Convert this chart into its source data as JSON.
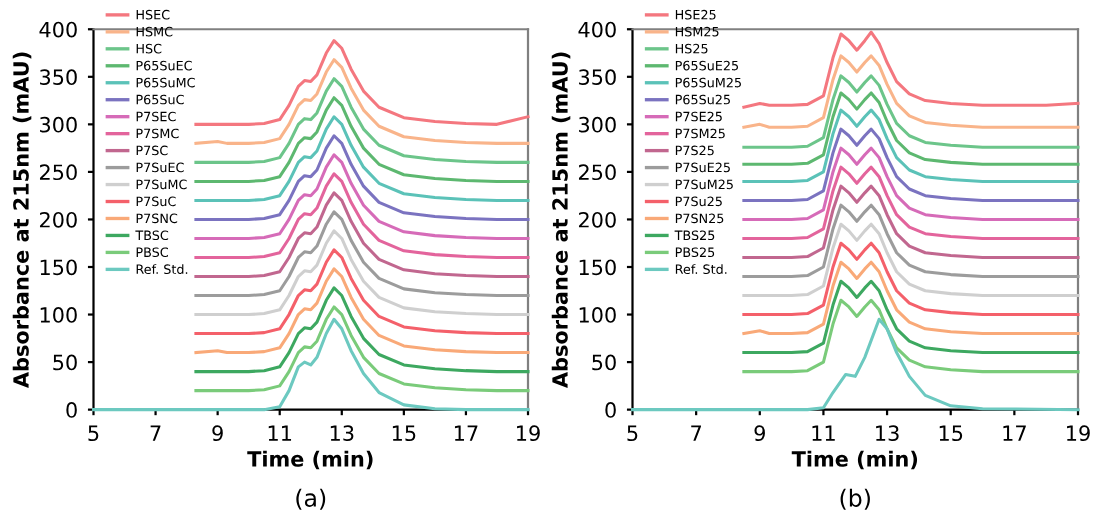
{
  "chart_data": [
    {
      "type": "line",
      "xlabel": "Time (min)",
      "ylabel": "Absorbance at 215nm (mAU)",
      "annotations": [
        "(a)"
      ],
      "xlim": [
        5,
        19
      ],
      "xticks": [
        5,
        7,
        9,
        11,
        13,
        15,
        17,
        19
      ],
      "ylim": [
        0,
        400
      ],
      "yticks": [
        0,
        50,
        100,
        150,
        200,
        250,
        300,
        350,
        400
      ],
      "grid": false,
      "legend": "top left",
      "marker": "none",
      "line_style": "solid",
      "x": [
        5,
        8.3,
        9,
        9.3,
        10,
        10.5,
        11,
        11.3,
        11.6,
        11.8,
        12.0,
        12.2,
        12.5,
        12.75,
        13.0,
        13.3,
        13.7,
        14.2,
        15,
        16,
        17,
        18,
        19
      ],
      "series": [
        {
          "name": "HSEC",
          "color": "#f4777f",
          "values": [
            null,
            300,
            300,
            300,
            300,
            301,
            305,
            320,
            340,
            346,
            345,
            352,
            375,
            388,
            380,
            358,
            335,
            318,
            307,
            303,
            301,
            300,
            308
          ]
        },
        {
          "name": "HSMC",
          "color": "#f9b48a",
          "values": [
            null,
            280,
            282,
            280,
            280,
            281,
            285,
            300,
            320,
            326,
            325,
            332,
            355,
            368,
            360,
            338,
            315,
            298,
            287,
            283,
            281,
            280,
            280
          ]
        },
        {
          "name": "HSC",
          "color": "#6cc58a",
          "values": [
            null,
            260,
            260,
            260,
            260,
            261,
            265,
            280,
            300,
            306,
            305,
            312,
            335,
            348,
            340,
            318,
            295,
            278,
            267,
            263,
            261,
            260,
            260
          ]
        },
        {
          "name": "P65SuEC",
          "color": "#5db870",
          "values": [
            null,
            240,
            240,
            240,
            240,
            241,
            245,
            260,
            280,
            286,
            285,
            292,
            315,
            328,
            320,
            298,
            275,
            258,
            247,
            243,
            241,
            240,
            240
          ]
        },
        {
          "name": "P65SuMC",
          "color": "#5bc2b8",
          "values": [
            null,
            220,
            220,
            220,
            220,
            221,
            225,
            240,
            260,
            266,
            265,
            272,
            295,
            308,
            300,
            278,
            255,
            238,
            227,
            223,
            221,
            220,
            220
          ]
        },
        {
          "name": "P65SuC",
          "color": "#7b73c0",
          "values": [
            null,
            200,
            200,
            200,
            200,
            201,
            205,
            220,
            240,
            246,
            245,
            252,
            275,
            288,
            280,
            258,
            235,
            218,
            207,
            203,
            201,
            200,
            200
          ]
        },
        {
          "name": "P7SEC",
          "color": "#d66bb8",
          "values": [
            null,
            180,
            180,
            180,
            180,
            181,
            185,
            200,
            220,
            226,
            225,
            232,
            255,
            268,
            260,
            238,
            215,
            198,
            187,
            183,
            181,
            180,
            180
          ]
        },
        {
          "name": "P7SMC",
          "color": "#e3649c",
          "values": [
            null,
            160,
            160,
            160,
            160,
            161,
            165,
            180,
            200,
            206,
            205,
            212,
            235,
            248,
            240,
            218,
            195,
            178,
            167,
            163,
            161,
            160,
            160
          ]
        },
        {
          "name": "P7SC",
          "color": "#c1678f",
          "values": [
            null,
            140,
            140,
            140,
            140,
            141,
            145,
            160,
            180,
            186,
            185,
            192,
            215,
            228,
            220,
            198,
            175,
            158,
            147,
            143,
            141,
            140,
            140
          ]
        },
        {
          "name": "P7SuEC",
          "color": "#9c9c9c",
          "values": [
            null,
            120,
            120,
            120,
            120,
            121,
            125,
            140,
            160,
            166,
            165,
            172,
            195,
            208,
            200,
            178,
            155,
            138,
            127,
            123,
            121,
            120,
            120
          ]
        },
        {
          "name": "P7SuMC",
          "color": "#cfcfcf",
          "values": [
            null,
            100,
            100,
            100,
            100,
            101,
            105,
            120,
            140,
            146,
            145,
            152,
            175,
            188,
            180,
            158,
            135,
            118,
            107,
            103,
            101,
            100,
            100
          ]
        },
        {
          "name": "P7SuC",
          "color": "#f4606a",
          "values": [
            null,
            80,
            80,
            80,
            80,
            81,
            85,
            100,
            120,
            126,
            125,
            132,
            155,
            168,
            160,
            138,
            115,
            98,
            87,
            83,
            81,
            80,
            80
          ]
        },
        {
          "name": "P7SNC",
          "color": "#f9a978",
          "values": [
            null,
            60,
            62,
            60,
            60,
            61,
            65,
            80,
            100,
            106,
            105,
            112,
            135,
            148,
            140,
            118,
            95,
            78,
            67,
            63,
            61,
            60,
            60
          ]
        },
        {
          "name": "TBSC",
          "color": "#3da860",
          "values": [
            null,
            40,
            40,
            40,
            40,
            41,
            45,
            60,
            80,
            86,
            85,
            92,
            115,
            128,
            120,
            98,
            75,
            58,
            47,
            43,
            41,
            40,
            40
          ]
        },
        {
          "name": "PBSC",
          "color": "#7acb7a",
          "values": [
            null,
            20,
            20,
            20,
            20,
            21,
            25,
            40,
            60,
            66,
            65,
            72,
            95,
            108,
            100,
            78,
            55,
            38,
            27,
            23,
            21,
            20,
            20
          ]
        },
        {
          "name": "Ref. Std.",
          "color": "#6cc9c0",
          "values": [
            0,
            0,
            0,
            0,
            0,
            0,
            3,
            20,
            45,
            50,
            47,
            55,
            80,
            95,
            85,
            62,
            38,
            18,
            5,
            1,
            0,
            0,
            0
          ]
        }
      ]
    },
    {
      "type": "line",
      "xlabel": "Time (min)",
      "ylabel": "Absorbance at 215nm (mAU)",
      "annotations": [
        "(b)"
      ],
      "xlim": [
        5,
        19
      ],
      "xticks": [
        5,
        7,
        9,
        11,
        13,
        15,
        17,
        19
      ],
      "ylim": [
        0,
        400
      ],
      "yticks": [
        0,
        50,
        100,
        150,
        200,
        250,
        300,
        350,
        400
      ],
      "grid": false,
      "legend": "top left",
      "marker": "none",
      "line_style": "solid",
      "x": [
        8.5,
        9,
        9.3,
        10,
        10.5,
        11,
        11.3,
        11.55,
        11.8,
        12.05,
        12.3,
        12.5,
        12.75,
        13.0,
        13.3,
        13.7,
        14.2,
        15,
        16,
        17,
        18,
        19
      ],
      "series": [
        {
          "name": "HSE25",
          "color": "#f4777f",
          "values": [
            318,
            322,
            320,
            320,
            321,
            330,
            370,
            395,
            388,
            378,
            388,
            397,
            385,
            365,
            345,
            332,
            325,
            322,
            320,
            320,
            320,
            322
          ]
        },
        {
          "name": "HSM25",
          "color": "#f9b48a",
          "values": [
            297,
            300,
            297,
            297,
            298,
            307,
            347,
            372,
            365,
            355,
            365,
            372,
            362,
            342,
            322,
            309,
            302,
            299,
            297,
            297,
            297,
            297
          ]
        },
        {
          "name": "HS25",
          "color": "#6cc58a",
          "values": [
            276,
            276,
            276,
            276,
            277,
            286,
            326,
            351,
            344,
            334,
            344,
            351,
            341,
            321,
            301,
            288,
            281,
            278,
            276,
            276,
            276,
            276
          ]
        },
        {
          "name": "P65SuE25",
          "color": "#5db870",
          "values": [
            258,
            258,
            258,
            258,
            259,
            268,
            308,
            333,
            326,
            316,
            326,
            333,
            323,
            303,
            283,
            270,
            263,
            260,
            258,
            258,
            258,
            258
          ]
        },
        {
          "name": "P65SuM25",
          "color": "#5bc2b8",
          "values": [
            240,
            240,
            240,
            240,
            241,
            250,
            290,
            315,
            308,
            298,
            308,
            315,
            305,
            285,
            265,
            252,
            245,
            242,
            240,
            240,
            240,
            240
          ]
        },
        {
          "name": "P65Su25",
          "color": "#7b73c0",
          "values": [
            220,
            220,
            220,
            220,
            221,
            230,
            270,
            295,
            288,
            278,
            288,
            295,
            285,
            265,
            245,
            232,
            225,
            222,
            220,
            220,
            220,
            220
          ]
        },
        {
          "name": "P7SE25",
          "color": "#d66bb8",
          "values": [
            200,
            200,
            200,
            200,
            201,
            210,
            250,
            275,
            268,
            258,
            268,
            275,
            265,
            245,
            225,
            212,
            205,
            202,
            200,
            200,
            200,
            200
          ]
        },
        {
          "name": "P7SM25",
          "color": "#e3649c",
          "values": [
            180,
            180,
            180,
            180,
            181,
            190,
            230,
            255,
            248,
            238,
            248,
            255,
            245,
            225,
            205,
            192,
            185,
            182,
            180,
            180,
            180,
            180
          ]
        },
        {
          "name": "P7S25",
          "color": "#c1678f",
          "values": [
            160,
            160,
            160,
            160,
            161,
            170,
            210,
            235,
            228,
            218,
            228,
            235,
            225,
            205,
            185,
            172,
            165,
            162,
            160,
            160,
            160,
            160
          ]
        },
        {
          "name": "P7SuE25",
          "color": "#9c9c9c",
          "values": [
            140,
            140,
            140,
            140,
            141,
            150,
            190,
            215,
            208,
            198,
            208,
            215,
            205,
            185,
            165,
            152,
            145,
            142,
            140,
            140,
            140,
            140
          ]
        },
        {
          "name": "P7SuM25",
          "color": "#cfcfcf",
          "values": [
            120,
            120,
            120,
            120,
            121,
            130,
            170,
            195,
            188,
            178,
            188,
            195,
            185,
            165,
            145,
            132,
            125,
            122,
            120,
            120,
            120,
            120
          ]
        },
        {
          "name": "P7Su25",
          "color": "#f4606a",
          "values": [
            100,
            100,
            100,
            100,
            101,
            110,
            150,
            175,
            168,
            158,
            168,
            175,
            165,
            145,
            125,
            112,
            105,
            102,
            100,
            100,
            100,
            100
          ]
        },
        {
          "name": "P7SN25",
          "color": "#f9a978",
          "values": [
            80,
            83,
            80,
            80,
            81,
            90,
            130,
            155,
            148,
            138,
            148,
            155,
            145,
            125,
            105,
            92,
            85,
            82,
            80,
            80,
            80,
            80
          ]
        },
        {
          "name": "TBS25",
          "color": "#3da860",
          "values": [
            60,
            60,
            60,
            60,
            61,
            70,
            110,
            135,
            128,
            118,
            128,
            135,
            125,
            105,
            85,
            72,
            65,
            62,
            60,
            60,
            60,
            60
          ]
        },
        {
          "name": "PBS25",
          "color": "#7acb7a",
          "values": [
            40,
            40,
            40,
            40,
            41,
            50,
            90,
            115,
            108,
            98,
            108,
            115,
            105,
            85,
            65,
            52,
            45,
            42,
            40,
            40,
            40,
            40
          ]
        },
        {
          "name": "Ref. Std.",
          "color": "#6cc9c0",
          "x": [
            5,
            10,
            10.5,
            11,
            11.3,
            11.7,
            12.0,
            12.3,
            12.75,
            13.0,
            13.3,
            13.7,
            14.2,
            15,
            16,
            19
          ],
          "values": [
            0,
            0,
            0,
            2,
            18,
            37,
            35,
            55,
            95,
            85,
            60,
            35,
            15,
            4,
            1,
            0
          ]
        }
      ]
    }
  ]
}
